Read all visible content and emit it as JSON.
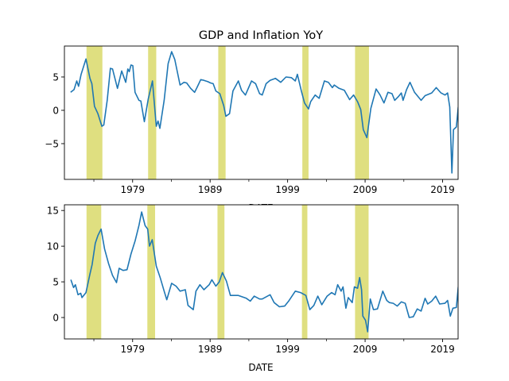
{
  "chart_data": [
    {
      "type": "line",
      "title": "GDP and Inflation YoY",
      "xlabel": "DATE",
      "ylabel": "",
      "xlim": [
        1970.2,
        2021.0
      ],
      "ylim": [
        -10.36,
        9.64
      ],
      "xticks": [
        1979,
        1989,
        1999,
        2009,
        2019
      ],
      "xminor": [
        1974,
        1984,
        1994,
        2004,
        2014
      ],
      "yticks": [
        {
          "v": 5,
          "label": "5"
        },
        {
          "v": 0,
          "label": "0"
        },
        {
          "v": -5,
          "label": "−5"
        }
      ],
      "grid": false,
      "line_color": "#1f77b4",
      "shade_color": "#dfdf80",
      "recessions": [
        [
          1973.05,
          1975.1
        ],
        [
          1981.0,
          1982.05
        ],
        [
          1990.05,
          1991.0
        ],
        [
          2000.9,
          2001.7
        ],
        [
          2007.7,
          2009.5
        ]
      ],
      "x": [
        1971.0,
        1971.44,
        1971.79,
        1972.03,
        1972.36,
        1972.98,
        1973.49,
        1973.74,
        1974.08,
        1974.52,
        1975.03,
        1975.28,
        1975.72,
        1976.13,
        1976.41,
        1977.05,
        1977.59,
        1978.11,
        1978.38,
        1978.56,
        1978.79,
        1979.03,
        1979.31,
        1979.82,
        1980.06,
        1980.51,
        1981.02,
        1981.56,
        1982.05,
        1982.28,
        1982.52,
        1983.07,
        1983.58,
        1984.03,
        1984.44,
        1985.12,
        1985.64,
        1985.97,
        1986.49,
        1987.0,
        1987.34,
        1987.79,
        1988.2,
        1988.71,
        1989.05,
        1989.39,
        1989.74,
        1990.25,
        1990.76,
        1991.03,
        1991.51,
        1991.95,
        1992.64,
        1993.05,
        1993.56,
        1994.35,
        1994.87,
        1995.38,
        1995.72,
        1996.23,
        1996.74,
        1997.43,
        1998.11,
        1998.79,
        1999.48,
        1999.99,
        2000.26,
        2000.77,
        2001.18,
        2001.7,
        2001.97,
        2002.56,
        2003.07,
        2003.75,
        2004.26,
        2004.77,
        2005.02,
        2005.64,
        2006.32,
        2007.0,
        2007.51,
        2008.03,
        2008.44,
        2008.77,
        2009.23,
        2009.74,
        2010.42,
        2010.93,
        2011.44,
        2011.95,
        2012.47,
        2012.82,
        2013.33,
        2013.67,
        2013.9,
        2014.35,
        2014.79,
        2015.38,
        2016.23,
        2016.74,
        2017.59,
        2018.18,
        2018.79,
        2019.31,
        2019.65,
        2019.92,
        2020.2,
        2020.4,
        2020.77,
        2021.02
      ],
      "y": [
        2.7,
        3.1,
        4.4,
        3.6,
        5.4,
        7.7,
        4.8,
        4.0,
        0.6,
        -0.5,
        -2.4,
        -2.2,
        1.5,
        6.3,
        6.2,
        3.3,
        5.9,
        4.2,
        6.2,
        5.8,
        6.8,
        6.7,
        2.7,
        1.5,
        1.4,
        -1.7,
        1.7,
        4.4,
        -2.4,
        -1.6,
        -2.7,
        1.5,
        7.0,
        8.8,
        7.6,
        3.8,
        4.2,
        4.1,
        3.3,
        2.7,
        3.5,
        4.6,
        4.5,
        4.3,
        4.1,
        4.0,
        2.9,
        2.5,
        0.7,
        -0.9,
        -0.5,
        2.9,
        4.4,
        3.0,
        2.3,
        4.4,
        4.0,
        2.5,
        2.3,
        4.0,
        4.5,
        4.8,
        4.2,
        5.0,
        4.9,
        4.4,
        5.4,
        2.9,
        1.1,
        0.2,
        1.3,
        2.3,
        1.8,
        4.4,
        4.2,
        3.4,
        3.8,
        3.3,
        3.0,
        1.6,
        2.3,
        1.3,
        0.1,
        -2.9,
        -4.1,
        0.3,
        3.2,
        2.3,
        1.1,
        2.7,
        2.5,
        1.5,
        2.1,
        2.6,
        1.5,
        3.1,
        4.2,
        2.7,
        1.5,
        2.2,
        2.6,
        3.4,
        2.6,
        2.3,
        2.6,
        0.5,
        -9.4,
        -2.9,
        -2.5,
        0.5
      ]
    },
    {
      "type": "line",
      "title": "",
      "xlabel": "DATE",
      "ylabel": "",
      "xlim": [
        1970.2,
        2021.0
      ],
      "ylim": [
        -3.0,
        15.8
      ],
      "xticks": [
        1979,
        1989,
        1999,
        2009,
        2019
      ],
      "xminor": [
        1974,
        1984,
        1994,
        2004,
        2014
      ],
      "yticks": [
        {
          "v": 15,
          "label": "15"
        },
        {
          "v": 10,
          "label": "10"
        },
        {
          "v": 5,
          "label": "5"
        },
        {
          "v": 0,
          "label": "0"
        }
      ],
      "grid": false,
      "line_color": "#1f77b4",
      "shade_color": "#dfdf80",
      "recessions": [
        [
          1973.05,
          1974.95
        ],
        [
          1980.9,
          1981.9
        ],
        [
          1989.95,
          1990.85
        ],
        [
          2000.85,
          2001.55
        ],
        [
          2007.7,
          2009.45
        ]
      ],
      "x": [
        1971.03,
        1971.38,
        1971.62,
        1971.95,
        1972.3,
        1972.47,
        1972.98,
        1973.49,
        1973.77,
        1974.18,
        1974.52,
        1974.93,
        1975.38,
        1975.89,
        1976.41,
        1976.92,
        1977.26,
        1977.77,
        1978.28,
        1978.79,
        1979.31,
        1979.82,
        1980.16,
        1980.61,
        1980.95,
        1981.18,
        1981.53,
        1982.05,
        1982.56,
        1983.07,
        1983.41,
        1984.03,
        1984.61,
        1985.12,
        1985.8,
        1986.15,
        1986.83,
        1987.17,
        1987.69,
        1988.2,
        1988.88,
        1989.23,
        1989.74,
        1990.18,
        1990.59,
        1991.1,
        1991.62,
        1992.64,
        1993.67,
        1994.18,
        1994.69,
        1995.38,
        1995.72,
        1996.74,
        1997.26,
        1997.94,
        1998.62,
        1999.13,
        1999.99,
        2000.67,
        2001.36,
        2001.87,
        2002.38,
        2002.9,
        2003.41,
        2004.1,
        2004.67,
        2005.12,
        2005.46,
        2005.9,
        2006.15,
        2006.52,
        2006.83,
        2007.34,
        2007.62,
        2008.03,
        2008.3,
        2008.54,
        2008.71,
        2009.05,
        2009.33,
        2009.67,
        2010.08,
        2010.59,
        2011.28,
        2011.79,
        2012.13,
        2012.64,
        2013.15,
        2013.67,
        2014.18,
        2014.69,
        2015.21,
        2015.72,
        2016.23,
        2016.74,
        2017.08,
        2017.59,
        2018.11,
        2018.62,
        2019.31,
        2019.65,
        2019.99,
        2020.33,
        2020.77,
        2021.02
      ],
      "y": [
        5.3,
        4.2,
        4.6,
        3.2,
        3.4,
        2.8,
        3.5,
        6.1,
        7.4,
        10.4,
        11.5,
        12.4,
        9.6,
        7.6,
        5.9,
        4.9,
        6.9,
        6.6,
        6.7,
        8.9,
        10.7,
        12.9,
        14.8,
        12.9,
        12.4,
        10.0,
        10.9,
        7.2,
        5.6,
        3.7,
        2.5,
        4.8,
        4.4,
        3.7,
        3.9,
        1.7,
        1.1,
        3.7,
        4.6,
        3.9,
        4.6,
        5.3,
        4.4,
        5.0,
        6.3,
        5.1,
        3.1,
        3.1,
        2.7,
        2.3,
        3.0,
        2.6,
        2.6,
        3.2,
        2.1,
        1.5,
        1.6,
        2.3,
        3.7,
        3.5,
        3.1,
        1.1,
        1.7,
        3.0,
        1.8,
        3.0,
        3.5,
        3.2,
        4.6,
        3.7,
        4.3,
        1.3,
        2.8,
        2.1,
        4.3,
        4.1,
        5.6,
        3.9,
        0.2,
        -0.4,
        -2.0,
        2.6,
        1.1,
        1.2,
        3.7,
        2.4,
        2.1,
        2.0,
        1.6,
        2.2,
        2.0,
        0.0,
        0.1,
        1.2,
        0.9,
        2.7,
        1.9,
        2.3,
        3.0,
        1.9,
        2.0,
        2.4,
        0.2,
        1.3,
        1.4,
        4.3
      ]
    }
  ]
}
